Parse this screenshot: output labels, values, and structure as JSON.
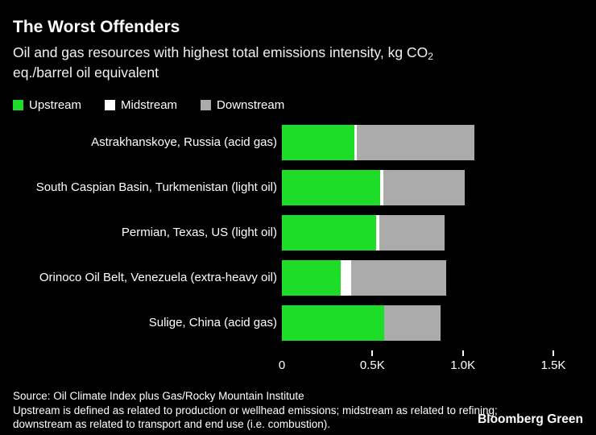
{
  "header": {
    "title": "The Worst Offenders",
    "subtitle_line1": "Oil and gas resources with highest total emissions intensity, kg CO",
    "subtitle_subscript": "2",
    "subtitle_line2": "eq./barrel oil equivalent"
  },
  "legend": {
    "items": [
      {
        "label": "Upstream",
        "color": "#1ddd28",
        "icon": "green-square-swatch"
      },
      {
        "label": "Midstream",
        "color": "#ffffff",
        "icon": "white-square-swatch"
      },
      {
        "label": "Downstream",
        "color": "#ababab",
        "icon": "gray-square-swatch"
      }
    ]
  },
  "chart_data": {
    "type": "bar",
    "orientation": "horizontal",
    "stacked": true,
    "title": "The Worst Offenders",
    "subtitle": "Oil and gas resources with highest total emissions intensity, kg CO₂ eq./barrel oil equivalent",
    "xlabel": "kg CO₂ eq./barrel oil equivalent",
    "ylabel": "",
    "grid": false,
    "legend_position": "top",
    "categories": [
      "Astrakhanskoye, Russia (acid gas)",
      "South Caspian Basin, Turkmenistan (light oil)",
      "Permian, Texas, US (light oil)",
      "Orinoco Oil Belt, Venezuela (extra-heavy oil)",
      "Sulige, China (acid gas)"
    ],
    "series": [
      {
        "name": "Upstream",
        "color": "#1ddd28",
        "values": [
          400,
          545,
          520,
          325,
          565
        ]
      },
      {
        "name": "Midstream",
        "color": "#ffffff",
        "values": [
          15,
          15,
          20,
          60,
          0
        ]
      },
      {
        "name": "Downstream",
        "color": "#ababab",
        "values": [
          650,
          450,
          360,
          525,
          310
        ]
      }
    ],
    "totals": [
      1065,
      1010,
      900,
      910,
      875
    ],
    "xlim": [
      0,
      1500
    ],
    "x_ticks": [
      {
        "value": 0,
        "label": "0"
      },
      {
        "value": 500,
        "label": "0.5K"
      },
      {
        "value": 1000,
        "label": "1.0K"
      },
      {
        "value": 1500,
        "label": "1.5K"
      }
    ]
  },
  "footer": {
    "source": "Source: Oil Climate Index plus Gas/Rocky Mountain Institute",
    "note_line1": "Upstream is defined as related to production or wellhead emissions; midstream as related to refining;",
    "note_line2": "downstream as related to transport and end use (i.e. combustion).",
    "brand": "Bloomberg Green"
  },
  "colors": {
    "background": "#000000",
    "text": "#ffffff",
    "upstream_green": "#1ddd28",
    "midstream_white": "#ffffff",
    "downstream_gray": "#ababab"
  }
}
